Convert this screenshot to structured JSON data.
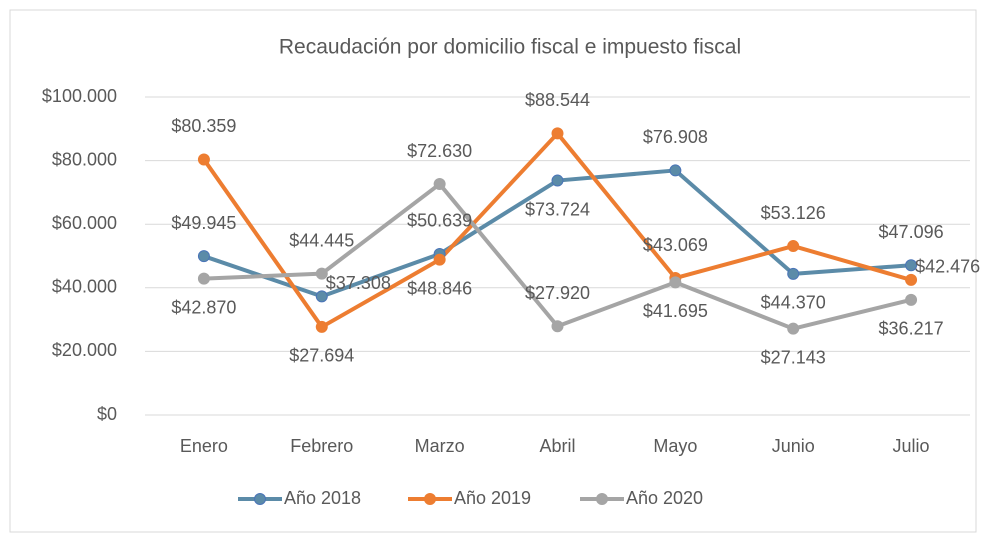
{
  "chart_data": {
    "type": "line",
    "title": "Recaudación por domicilio fiscal e impuesto fiscal",
    "categories": [
      "Enero",
      "Febrero",
      "Marzo",
      "Abril",
      "Mayo",
      "Junio",
      "Julio"
    ],
    "series": [
      {
        "name": "Año 2018",
        "color": "#5b8ba8",
        "values": [
          49945,
          37308,
          50639,
          73724,
          76908,
          44370,
          47096
        ],
        "value_labels": [
          "$49.945",
          "$37.308",
          "$50.639",
          "$73.724",
          "$76.908",
          "$44.370",
          "$47.096"
        ]
      },
      {
        "name": "Año 2019",
        "color": "#ed7d31",
        "values": [
          80359,
          27694,
          48846,
          88544,
          43069,
          53126,
          42476
        ],
        "value_labels": [
          "$80.359",
          "$27.694",
          "$48.846",
          "$88.544",
          "$43.069",
          "$53.126",
          "$42.476"
        ]
      },
      {
        "name": "Año 2020",
        "color": "#a5a5a5",
        "values": [
          42870,
          44445,
          72630,
          27920,
          41695,
          27143,
          36217
        ],
        "value_labels": [
          "$42.870",
          "$44.445",
          "$72.630",
          "$27.920",
          "$41.695",
          "$27.143",
          "$36.217"
        ]
      }
    ],
    "ylim": [
      0,
      100000
    ],
    "yticks": [
      {
        "value": 0,
        "label": "$0"
      },
      {
        "value": 20000,
        "label": "$20.000"
      },
      {
        "value": 40000,
        "label": "$40.000"
      },
      {
        "value": 60000,
        "label": "$60.000"
      },
      {
        "value": 80000,
        "label": "$80.000"
      },
      {
        "value": 100000,
        "label": "$100.000"
      }
    ],
    "grid": true,
    "legend": "bottom"
  }
}
